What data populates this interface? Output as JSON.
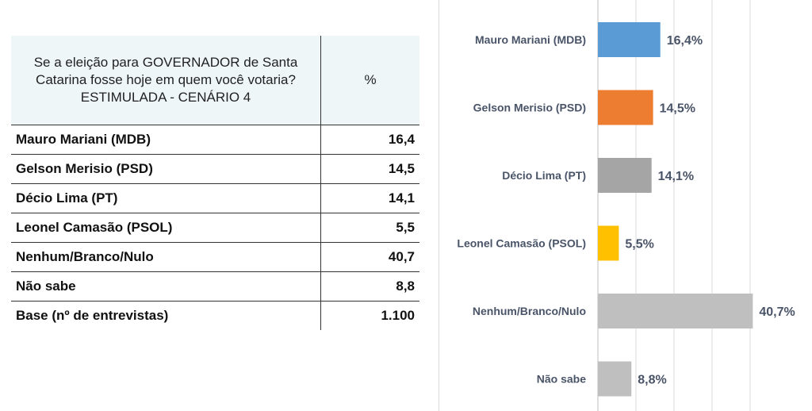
{
  "table": {
    "header_question": "Se a eleição para GOVERNADOR de Santa Catarina fosse hoje em quem você votaria? ESTIMULADA - CENÁRIO 4",
    "header_pct": "%",
    "rows": [
      {
        "label": "Mauro Mariani (MDB)",
        "value": "16,4"
      },
      {
        "label": "Gelson Merisio (PSD)",
        "value": "14,5"
      },
      {
        "label": "Décio Lima (PT)",
        "value": "14,1"
      },
      {
        "label": "Leonel Camasão (PSOL)",
        "value": "5,5"
      },
      {
        "label": "Nenhum/Branco/Nulo",
        "value": "40,7"
      },
      {
        "label": "Não sabe",
        "value": "8,8"
      },
      {
        "label": "Base (nº de entrevistas)",
        "value": "1.100"
      }
    ]
  },
  "chart_data": {
    "type": "bar",
    "orientation": "horizontal",
    "categories": [
      "Mauro Mariani (MDB)",
      "Gelson Merisio (PSD)",
      "Décio Lima (PT)",
      "Leonel Camasão (PSOL)",
      "Nenhum/Branco/Nulo",
      "Não sabe"
    ],
    "values": [
      16.4,
      14.5,
      14.1,
      5.5,
      40.7,
      8.8
    ],
    "value_labels": [
      "16,4%",
      "14,5%",
      "14,1%",
      "5,5%",
      "40,7%",
      "8,8%"
    ],
    "colors": [
      "#5b9bd5",
      "#ed7d31",
      "#a5a5a5",
      "#ffc000",
      "#bfbfbf",
      "#bfbfbf"
    ],
    "title": "",
    "xlabel": "",
    "ylabel": "",
    "xlim": [
      0,
      45
    ],
    "grid": true,
    "legend": "none"
  }
}
